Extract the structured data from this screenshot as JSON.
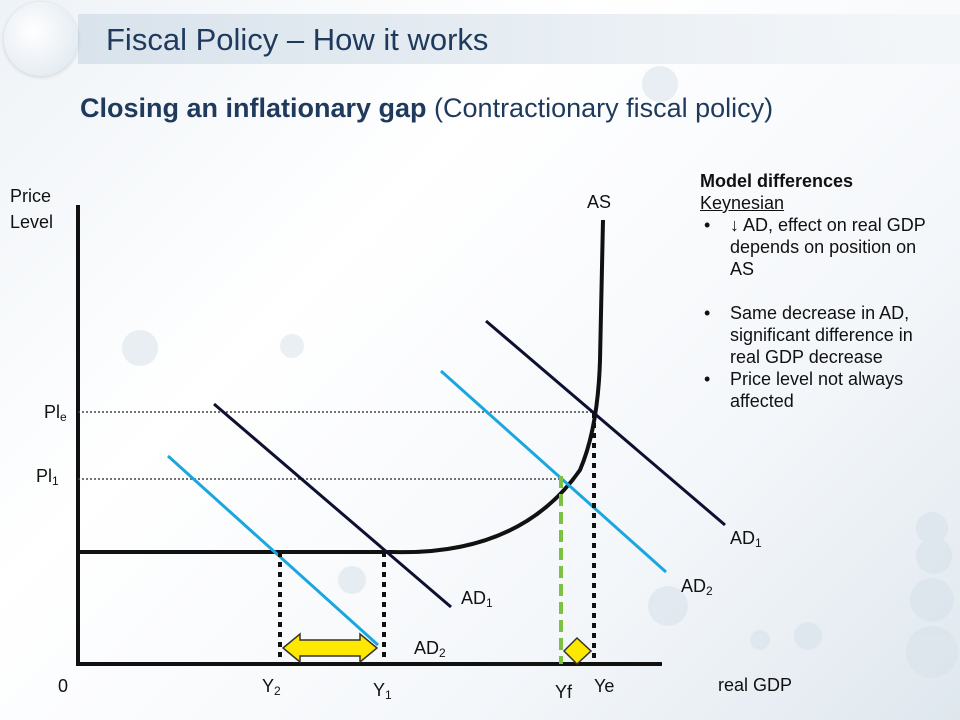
{
  "slide": {
    "title": "Fiscal Policy – How it works",
    "subtitle_bold": "Closing an inflationary gap",
    "subtitle_rest": "(Contractionary fiscal policy)"
  },
  "axes": {
    "y_label_line1": "Price",
    "y_label_line2": "Level",
    "x_label": "real GDP",
    "origin": "0"
  },
  "curves": {
    "as_label": "AS",
    "right_ad1": "AD",
    "right_ad1_sub": "1",
    "right_ad2": "AD",
    "right_ad2_sub": "2",
    "left_ad1": "AD",
    "left_ad1_sub": "1",
    "left_ad2": "AD",
    "left_ad2_sub": "2"
  },
  "price_levels": {
    "ple": "Pl",
    "ple_sub": "e",
    "pl1": "Pl",
    "pl1_sub": "1"
  },
  "x_markers": {
    "y2": "Y",
    "y2_sub": "2",
    "y1": "Y",
    "y1_sub": "1",
    "yf": "Yf",
    "ye": "Ye"
  },
  "notes": {
    "heading": "Model differences",
    "subheading": "Keynesian",
    "bullets": [
      "↓ AD, effect on real GDP depends on position on AS",
      "Same decrease in AD, significant difference in real GDP decrease",
      "Price level not always affected"
    ]
  },
  "colors": {
    "ad1": "#0d1030",
    "ad2": "#1aa7e0",
    "axis": "#111111",
    "yf_line": "#7dc142",
    "arrow_fill": "#ffe800"
  },
  "icons": [
    "pound-icon",
    "yen-icon",
    "euro-icon",
    "dollar-icon"
  ]
}
